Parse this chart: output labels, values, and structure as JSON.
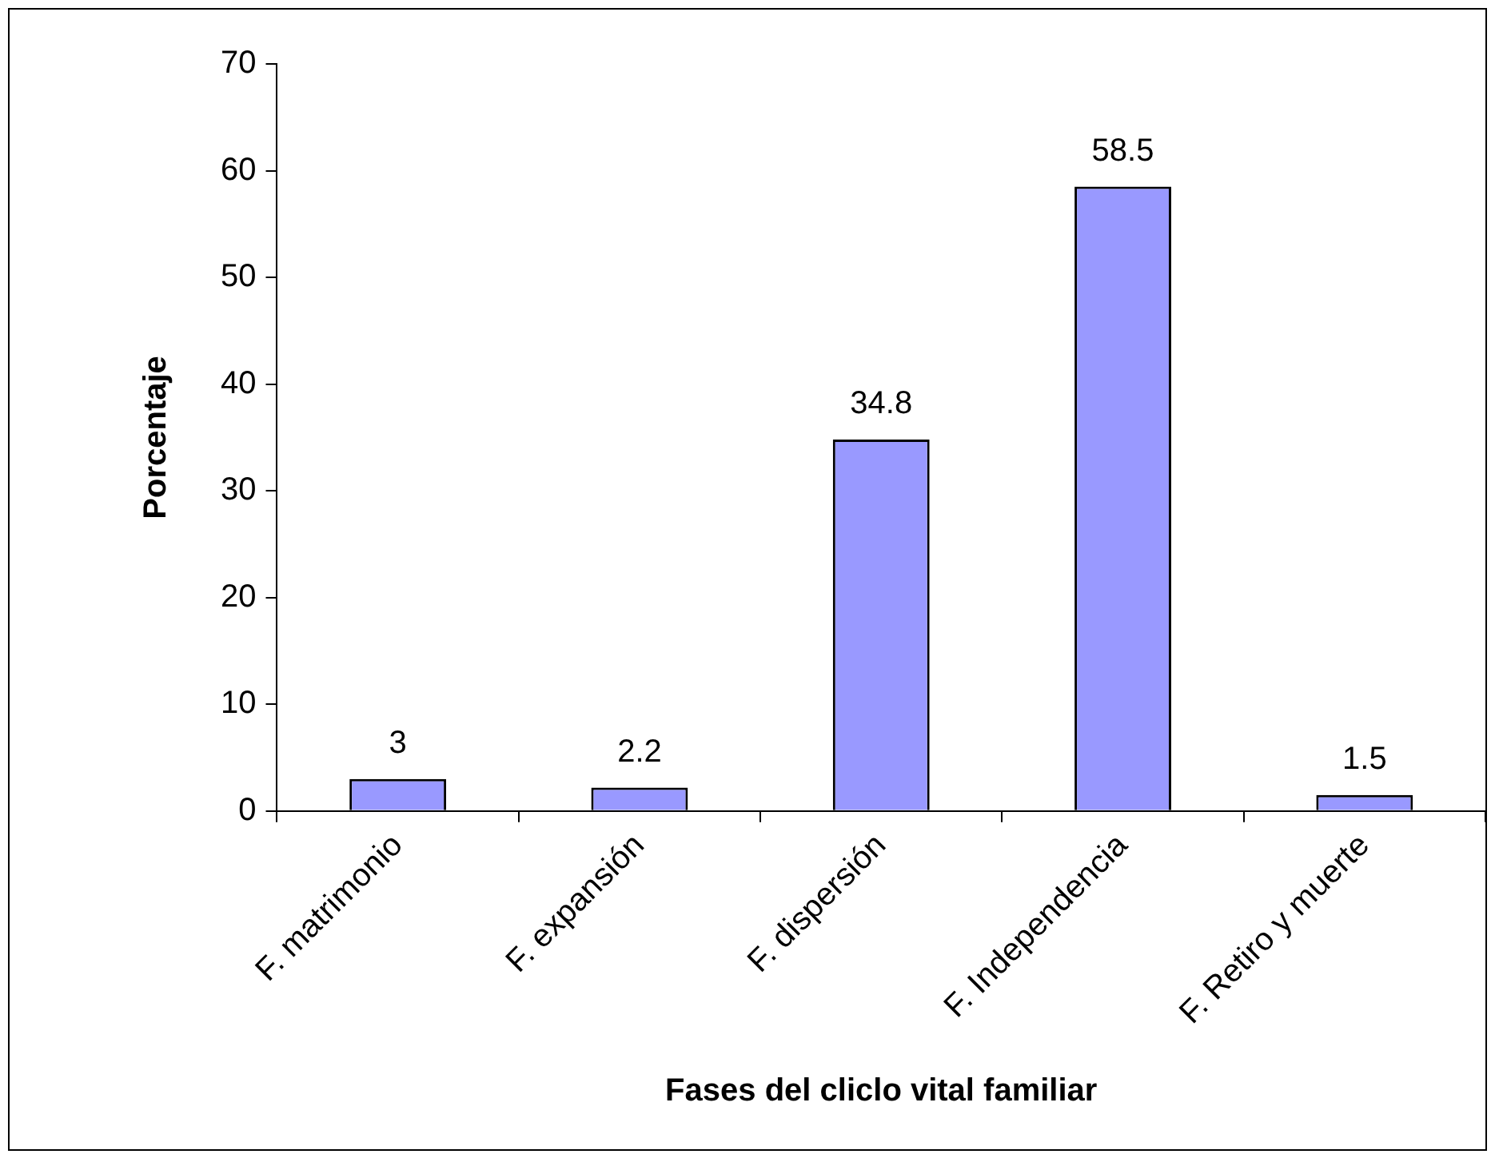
{
  "chart_data": {
    "type": "bar",
    "xlabel": "Fases del cliclo vital familiar",
    "ylabel": "Porcentaje",
    "categories": [
      "F. matrimonio",
      "F. expansión",
      "F. dispersión",
      "F. Independencia",
      "F. Retiro y muerte"
    ],
    "values": [
      3,
      2.2,
      34.8,
      58.5,
      1.5
    ],
    "color": "#9999ff",
    "ylim": [
      0,
      70
    ],
    "yticks": [
      0,
      10,
      20,
      30,
      40,
      50,
      60,
      70
    ],
    "data_labels": true
  }
}
